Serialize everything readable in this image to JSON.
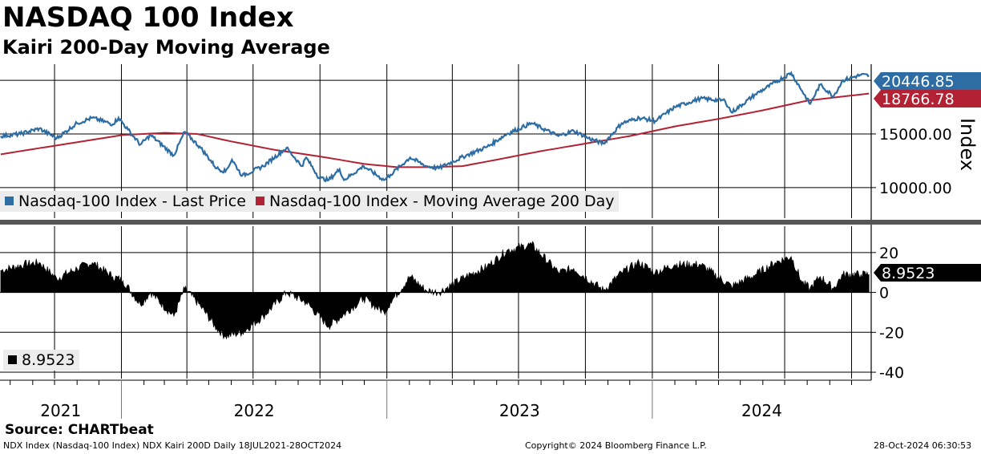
{
  "header": {
    "title": "NASDAQ 100 Index",
    "subtitle": "Kairi 200-Day Moving Average"
  },
  "footer": {
    "source": "Source: CHARTbeat",
    "left": "NDX Index (Nasdaq-100 Index) NDX Kairi 200D  Daily 18JUL2021-28OCT2024",
    "center": "Copyright© 2024 Bloomberg Finance L.P.",
    "right": "28-Oct-2024 06:30:53"
  },
  "colors": {
    "price": "#2e6da4",
    "ma": "#b22234",
    "kairi": "#000000",
    "legend_bg": "#ececec"
  },
  "chart_data": [
    {
      "type": "line",
      "panel": "upper",
      "ylabel": "Index",
      "y_ticks": [
        "15000.00",
        "10000.00"
      ],
      "ylim": [
        7000,
        21500
      ],
      "x_ticks": [
        "2021",
        "2022",
        "2023",
        "2024"
      ],
      "xlim": [
        "2021-07-18",
        "2024-10-28"
      ],
      "last_values": {
        "price": "20446.85",
        "ma": "18766.78"
      },
      "series": [
        {
          "name": "Nasdaq-100 Index - Last Price",
          "points": [
            [
              "2021-07-19",
              14800
            ],
            [
              "2021-08-15",
              15000
            ],
            [
              "2021-09-10",
              15500
            ],
            [
              "2021-10-04",
              14600
            ],
            [
              "2021-11-01",
              16000
            ],
            [
              "2021-11-22",
              16500
            ],
            [
              "2021-12-20",
              15900
            ],
            [
              "2021-12-28",
              16500
            ],
            [
              "2022-01-10",
              15400
            ],
            [
              "2022-01-27",
              14000
            ],
            [
              "2022-02-10",
              14900
            ],
            [
              "2022-03-14",
              13000
            ],
            [
              "2022-03-29",
              15200
            ],
            [
              "2022-04-20",
              13700
            ],
            [
              "2022-05-12",
              11800
            ],
            [
              "2022-05-24",
              11500
            ],
            [
              "2022-06-02",
              12600
            ],
            [
              "2022-06-16",
              11100
            ],
            [
              "2022-07-15",
              12000
            ],
            [
              "2022-08-16",
              13700
            ],
            [
              "2022-09-06",
              12000
            ],
            [
              "2022-09-12",
              12800
            ],
            [
              "2022-09-30",
              10900
            ],
            [
              "2022-10-13",
              10700
            ],
            [
              "2022-10-28",
              11700
            ],
            [
              "2022-11-03",
              10700
            ],
            [
              "2022-11-30",
              12000
            ],
            [
              "2022-12-28",
              10700
            ],
            [
              "2023-01-06",
              11200
            ],
            [
              "2023-02-02",
              12800
            ],
            [
              "2023-02-24",
              12000
            ],
            [
              "2023-03-13",
              11800
            ],
            [
              "2023-04-20",
              13000
            ],
            [
              "2023-05-19",
              13800
            ],
            [
              "2023-06-15",
              15000
            ],
            [
              "2023-07-19",
              16000
            ],
            [
              "2023-08-25",
              14800
            ],
            [
              "2023-09-15",
              15300
            ],
            [
              "2023-10-05",
              14600
            ],
            [
              "2023-10-26",
              14100
            ],
            [
              "2023-11-20",
              16000
            ],
            [
              "2023-12-14",
              16500
            ],
            [
              "2024-01-05",
              16200
            ],
            [
              "2024-02-01",
              17500
            ],
            [
              "2024-03-07",
              18300
            ],
            [
              "2024-04-10",
              18100
            ],
            [
              "2024-04-19",
              17000
            ],
            [
              "2024-05-22",
              18700
            ],
            [
              "2024-06-18",
              19800
            ],
            [
              "2024-07-10",
              20690
            ],
            [
              "2024-07-25",
              19000
            ],
            [
              "2024-08-05",
              17800
            ],
            [
              "2024-08-19",
              19600
            ],
            [
              "2024-09-06",
              18500
            ],
            [
              "2024-09-19",
              20000
            ],
            [
              "2024-10-14",
              20500
            ],
            [
              "2024-10-25",
              20446.85
            ]
          ]
        },
        {
          "name": "Nasdaq-100 Index - Moving Average 200 Day",
          "points": [
            [
              "2021-07-19",
              13100
            ],
            [
              "2021-10-01",
              13900
            ],
            [
              "2022-01-03",
              14900
            ],
            [
              "2022-03-01",
              15100
            ],
            [
              "2022-04-15",
              15000
            ],
            [
              "2022-06-01",
              14300
            ],
            [
              "2022-08-01",
              13500
            ],
            [
              "2022-10-01",
              12900
            ],
            [
              "2022-12-01",
              12200
            ],
            [
              "2023-01-15",
              11900
            ],
            [
              "2023-03-01",
              11900
            ],
            [
              "2023-04-15",
              12000
            ],
            [
              "2023-06-01",
              12600
            ],
            [
              "2023-08-01",
              13400
            ],
            [
              "2023-10-01",
              14100
            ],
            [
              "2023-12-01",
              14800
            ],
            [
              "2024-02-01",
              15700
            ],
            [
              "2024-04-01",
              16400
            ],
            [
              "2024-06-01",
              17200
            ],
            [
              "2024-08-01",
              18100
            ],
            [
              "2024-10-25",
              18766.78
            ]
          ]
        }
      ]
    },
    {
      "type": "area",
      "panel": "lower",
      "y_ticks": [
        "20",
        "0",
        "-20",
        "-40"
      ],
      "ylim": [
        -44,
        34
      ],
      "last_value": "8.9523",
      "legend_label": "8.9523",
      "series": [
        {
          "name": "NDX Kairi 200D",
          "points": [
            [
              "2021-07-19",
              11
            ],
            [
              "2021-08-20",
              14
            ],
            [
              "2021-09-10",
              15
            ],
            [
              "2021-10-04",
              7
            ],
            [
              "2021-11-01",
              12
            ],
            [
              "2021-11-22",
              15
            ],
            [
              "2021-12-20",
              8
            ],
            [
              "2022-01-03",
              6
            ],
            [
              "2022-01-27",
              -6
            ],
            [
              "2022-02-10",
              0
            ],
            [
              "2022-03-14",
              -12
            ],
            [
              "2022-03-29",
              2
            ],
            [
              "2022-04-20",
              -7
            ],
            [
              "2022-05-12",
              -18
            ],
            [
              "2022-05-24",
              -22
            ],
            [
              "2022-06-16",
              -20
            ],
            [
              "2022-07-15",
              -12
            ],
            [
              "2022-08-16",
              0
            ],
            [
              "2022-09-12",
              -5
            ],
            [
              "2022-10-13",
              -17
            ],
            [
              "2022-11-30",
              -3
            ],
            [
              "2022-12-28",
              -10
            ],
            [
              "2023-01-06",
              -5
            ],
            [
              "2023-02-02",
              8
            ],
            [
              "2023-02-24",
              1
            ],
            [
              "2023-03-13",
              0
            ],
            [
              "2023-04-20",
              8
            ],
            [
              "2023-05-19",
              13
            ],
            [
              "2023-06-15",
              21
            ],
            [
              "2023-07-19",
              24
            ],
            [
              "2023-08-25",
              10
            ],
            [
              "2023-09-15",
              12
            ],
            [
              "2023-10-26",
              1
            ],
            [
              "2023-11-20",
              10
            ],
            [
              "2023-12-14",
              15
            ],
            [
              "2024-01-05",
              10
            ],
            [
              "2024-02-01",
              14
            ],
            [
              "2024-03-07",
              14
            ],
            [
              "2024-04-19",
              3
            ],
            [
              "2024-05-22",
              9
            ],
            [
              "2024-06-18",
              15
            ],
            [
              "2024-07-10",
              18
            ],
            [
              "2024-07-25",
              5
            ],
            [
              "2024-08-05",
              2
            ],
            [
              "2024-08-19",
              8
            ],
            [
              "2024-09-06",
              2
            ],
            [
              "2024-09-19",
              9
            ],
            [
              "2024-10-14",
              9
            ],
            [
              "2024-10-25",
              8.9523
            ]
          ]
        }
      ]
    }
  ]
}
